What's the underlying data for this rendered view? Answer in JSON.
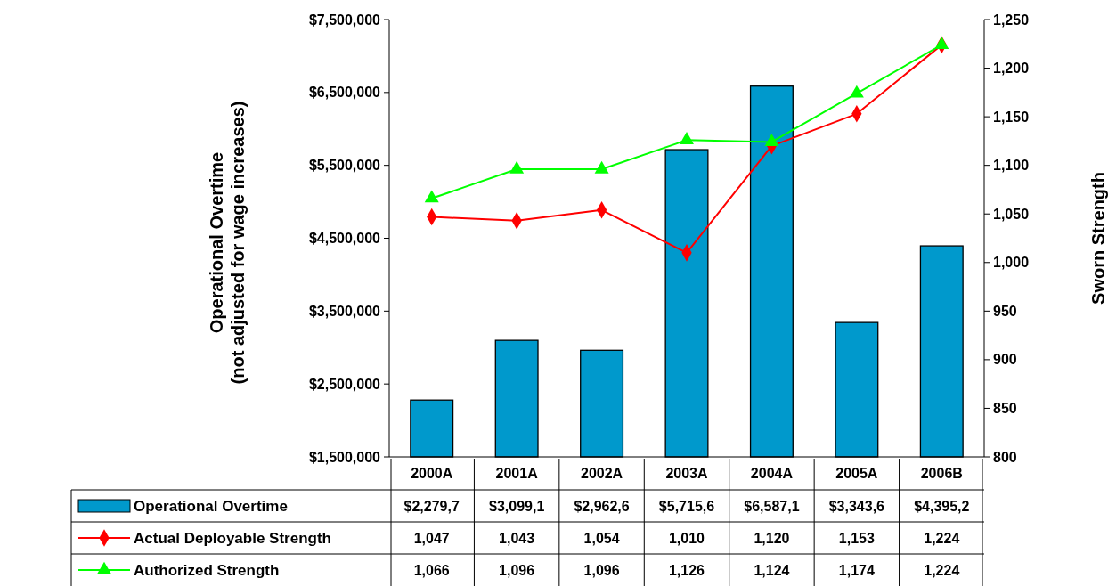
{
  "chart_data": {
    "type": "bar",
    "categories": [
      "2000A",
      "2001A",
      "2002A",
      "2003A",
      "2004A",
      "2005A",
      "2006B"
    ],
    "ylabel": "Operational Overtime\n(not adjusted for wage increases)",
    "y2label": "Sworn Strength",
    "ylim": [
      1500000,
      7500000
    ],
    "yticks": [
      {
        "value": 1500000,
        "label": "$1,500,000"
      },
      {
        "value": 2500000,
        "label": "$2,500,000"
      },
      {
        "value": 3500000,
        "label": "$3,500,000"
      },
      {
        "value": 4500000,
        "label": "$4,500,000"
      },
      {
        "value": 5500000,
        "label": "$5,500,000"
      },
      {
        "value": 6500000,
        "label": "$6,500,000"
      },
      {
        "value": 7500000,
        "label": "$7,500,000"
      }
    ],
    "y2lim": [
      800,
      1250
    ],
    "y2ticks": [
      {
        "value": 800,
        "label": "800"
      },
      {
        "value": 850,
        "label": "850"
      },
      {
        "value": 900,
        "label": "900"
      },
      {
        "value": 950,
        "label": "950"
      },
      {
        "value": 1000,
        "label": "1,000"
      },
      {
        "value": 1050,
        "label": "1,050"
      },
      {
        "value": 1100,
        "label": "1,100"
      },
      {
        "value": 1150,
        "label": "1,150"
      },
      {
        "value": 1200,
        "label": "1,200"
      },
      {
        "value": 1250,
        "label": "1,250"
      }
    ],
    "legend": "bottom",
    "series": [
      {
        "name": "Operational Overtime",
        "color": "#0099cc",
        "values": [
          2279700,
          3099100,
          2962600,
          5715600,
          6587100,
          3343600,
          4395200
        ],
        "value_labels": [
          "$2,279,7",
          "$3,099,1",
          "$2,962,6",
          "$5,715,6",
          "$6,587,1",
          "$3,343,6",
          "$4,395,2"
        ]
      },
      {
        "name": "Actual Deployable Strength",
        "type": "line",
        "axis": "y2",
        "color": "#ff0000",
        "marker": "diamond",
        "values": [
          1047,
          1043,
          1054,
          1010,
          1120,
          1153,
          1224
        ],
        "value_labels": [
          "1,047",
          "1,043",
          "1,054",
          "1,010",
          "1,120",
          "1,153",
          "1,224"
        ]
      },
      {
        "name": "Authorized Strength",
        "type": "line",
        "axis": "y2",
        "color": "#00ff00",
        "marker": "triangle",
        "values": [
          1066,
          1096,
          1096,
          1126,
          1124,
          1174,
          1224
        ],
        "value_labels": [
          "1,066",
          "1,096",
          "1,096",
          "1,126",
          "1,124",
          "1,174",
          "1,224"
        ]
      }
    ]
  }
}
